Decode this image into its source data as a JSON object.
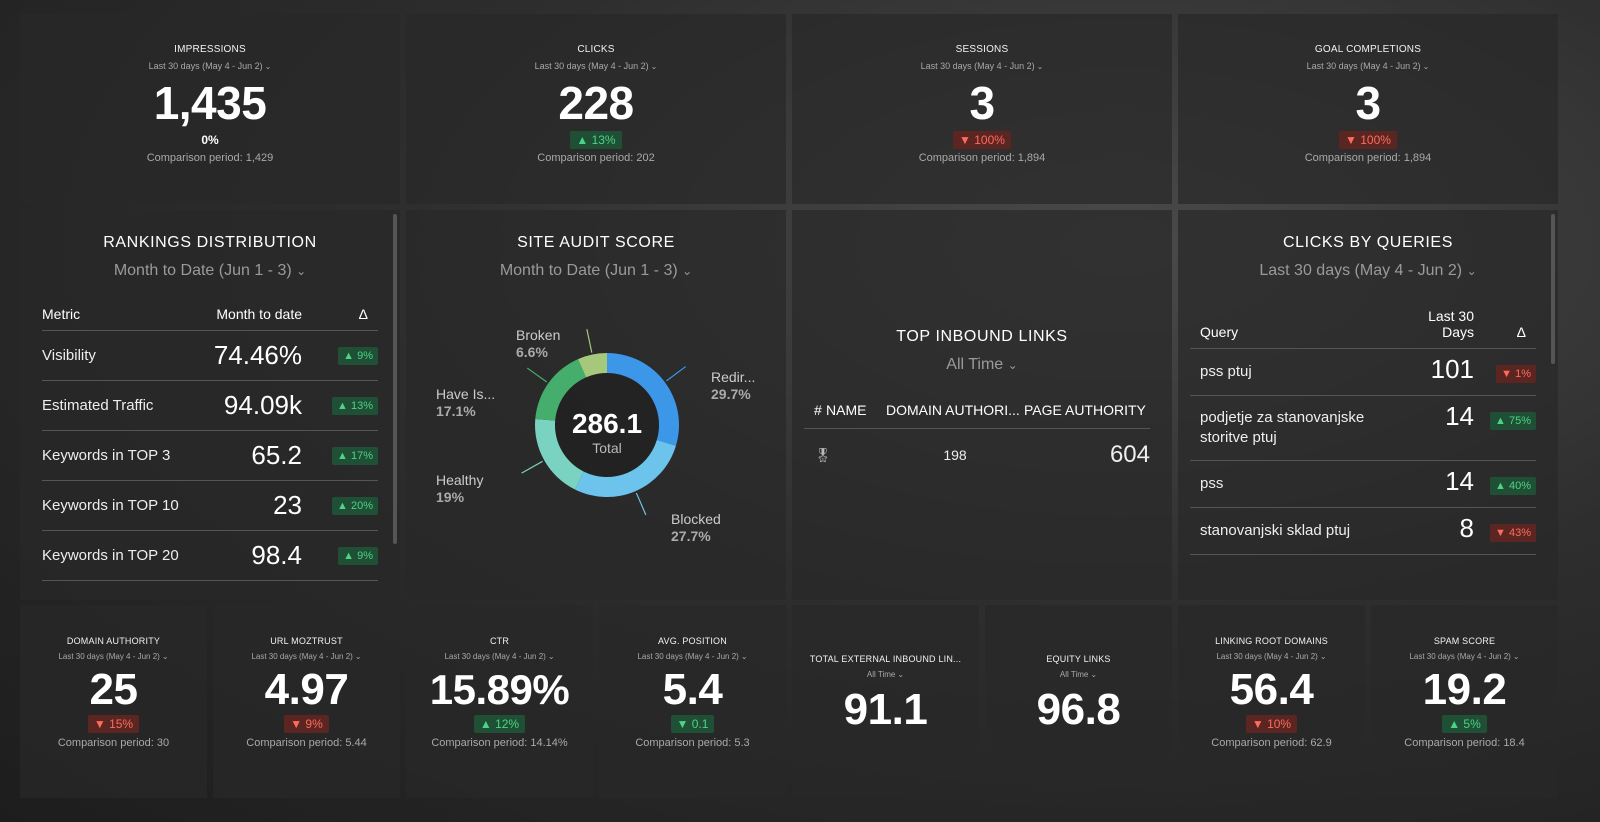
{
  "kpi_top": [
    {
      "title": "IMPRESSIONS",
      "period": "Last 30 days (May 4 - Jun 2)",
      "value": "1,435",
      "delta": "0%",
      "direction": "flat",
      "comparison": "Comparison period: 1,429"
    },
    {
      "title": "CLICKS",
      "period": "Last 30 days (May 4 - Jun 2)",
      "value": "228",
      "delta": "▲ 13%",
      "direction": "up",
      "comparison": "Comparison period: 202"
    },
    {
      "title": "SESSIONS",
      "period": "Last 30 days (May 4 - Jun 2)",
      "value": "3",
      "delta": "▼ 100%",
      "direction": "down",
      "comparison": "Comparison period: 1,894"
    },
    {
      "title": "GOAL COMPLETIONS",
      "period": "Last 30 days (May 4 - Jun 2)",
      "value": "3",
      "delta": "▼ 100%",
      "direction": "down",
      "comparison": "Comparison period: 1,894"
    }
  ],
  "rankings": {
    "title": "RANKINGS DISTRIBUTION",
    "period": "Month to Date (Jun 1 - 3)",
    "headers": {
      "metric": "Metric",
      "month": "Month to date",
      "delta": "Δ"
    },
    "rows": [
      {
        "metric": "Visibility",
        "value": "74.46%",
        "delta": "▲ 9%",
        "direction": "up"
      },
      {
        "metric": "Estimated Traffic",
        "value": "94.09k",
        "delta": "▲ 13%",
        "direction": "up"
      },
      {
        "metric": "Keywords in TOP 3",
        "value": "65.2",
        "delta": "▲ 17%",
        "direction": "up"
      },
      {
        "metric": "Keywords in TOP 10",
        "value": "23",
        "delta": "▲ 20%",
        "direction": "up"
      },
      {
        "metric": "Keywords in TOP 20",
        "value": "98.4",
        "delta": "▲ 9%",
        "direction": "up"
      }
    ]
  },
  "site_audit": {
    "title": "SITE AUDIT SCORE",
    "period": "Month to Date (Jun 1 - 3)",
    "total_value": "286.1",
    "total_label": "Total",
    "labels": [
      {
        "name": "Broken",
        "pct": "6.6%"
      },
      {
        "name": "Redir...",
        "pct": "29.7%"
      },
      {
        "name": "Have Is...",
        "pct": "17.1%"
      },
      {
        "name": "Healthy",
        "pct": "19%"
      },
      {
        "name": "Blocked",
        "pct": "27.7%"
      }
    ]
  },
  "chart_data": {
    "type": "pie",
    "title": "SITE AUDIT SCORE",
    "categories": [
      "Redir...",
      "Blocked",
      "Healthy",
      "Have Is...",
      "Broken"
    ],
    "values": [
      29.7,
      27.7,
      19,
      17.1,
      6.6
    ],
    "colors": [
      "#3c97e8",
      "#6cc3ec",
      "#7ad3c0",
      "#46ae6c",
      "#a6c87a"
    ],
    "center_total": 286.1
  },
  "inbound_links": {
    "title": "TOP INBOUND LINKS",
    "period": "All Time",
    "headers": {
      "num": "#",
      "name": "NAME",
      "domain": "DOMAIN AUTHORI...",
      "page": "PAGE AUTHORITY"
    },
    "row": {
      "icon": "medal-icon",
      "domain": "198",
      "page": "604"
    }
  },
  "queries": {
    "title": "CLICKS BY QUERIES",
    "period": "Last 30 days (May 4 - Jun 2)",
    "headers": {
      "query": "Query",
      "days": "Last 30 Days",
      "delta": "Δ"
    },
    "rows": [
      {
        "query": "pss ptuj",
        "value": "101",
        "delta": "▼ 1%",
        "direction": "down"
      },
      {
        "query": "podjetje za stanovanjske storitve ptuj",
        "value": "14",
        "delta": "▲ 75%",
        "direction": "up"
      },
      {
        "query": "pss",
        "value": "14",
        "delta": "▲ 40%",
        "direction": "up"
      },
      {
        "query": "stanovanjski sklad ptuj",
        "value": "8",
        "delta": "▼ 43%",
        "direction": "down"
      }
    ]
  },
  "kpi_bottom": [
    {
      "title": "DOMAIN AUTHORITY",
      "period": "Last 30 days (May 4 - Jun 2)",
      "value": "25",
      "delta": "▼ 15%",
      "direction": "down",
      "comparison": "Comparison period: 30"
    },
    {
      "title": "URL MOZTRUST",
      "period": "Last 30 days (May 4 - Jun 2)",
      "value": "4.97",
      "delta": "▼ 9%",
      "direction": "down",
      "comparison": "Comparison period: 5.44"
    },
    {
      "title": "CTR",
      "period": "Last 30 days (May 4 - Jun 2)",
      "value": "15.89%",
      "delta": "▲ 12%",
      "direction": "up",
      "comparison": "Comparison period: 14.14%"
    },
    {
      "title": "AVG. POSITION",
      "period": "Last 30 days (May 4 - Jun 2)",
      "value": "5.4",
      "delta": "▼ 0.1",
      "direction": "up",
      "comparison": "Comparison period: 5.3"
    },
    {
      "title": "TOTAL EXTERNAL INBOUND LIN...",
      "period": "All Time",
      "value": "91.1",
      "delta": "",
      "direction": "none",
      "comparison": ""
    },
    {
      "title": "EQUITY LINKS",
      "period": "All Time",
      "value": "96.8",
      "delta": "",
      "direction": "none",
      "comparison": ""
    },
    {
      "title": "LINKING ROOT DOMAINS",
      "period": "Last 30 days (May 4 - Jun 2)",
      "value": "56.4",
      "delta": "▼ 10%",
      "direction": "down",
      "comparison": "Comparison period: 62.9"
    },
    {
      "title": "SPAM SCORE",
      "period": "Last 30 days (May 4 - Jun 2)",
      "value": "19.2",
      "delta": "▲ 5%",
      "direction": "up",
      "comparison": "Comparison period: 18.4"
    }
  ]
}
